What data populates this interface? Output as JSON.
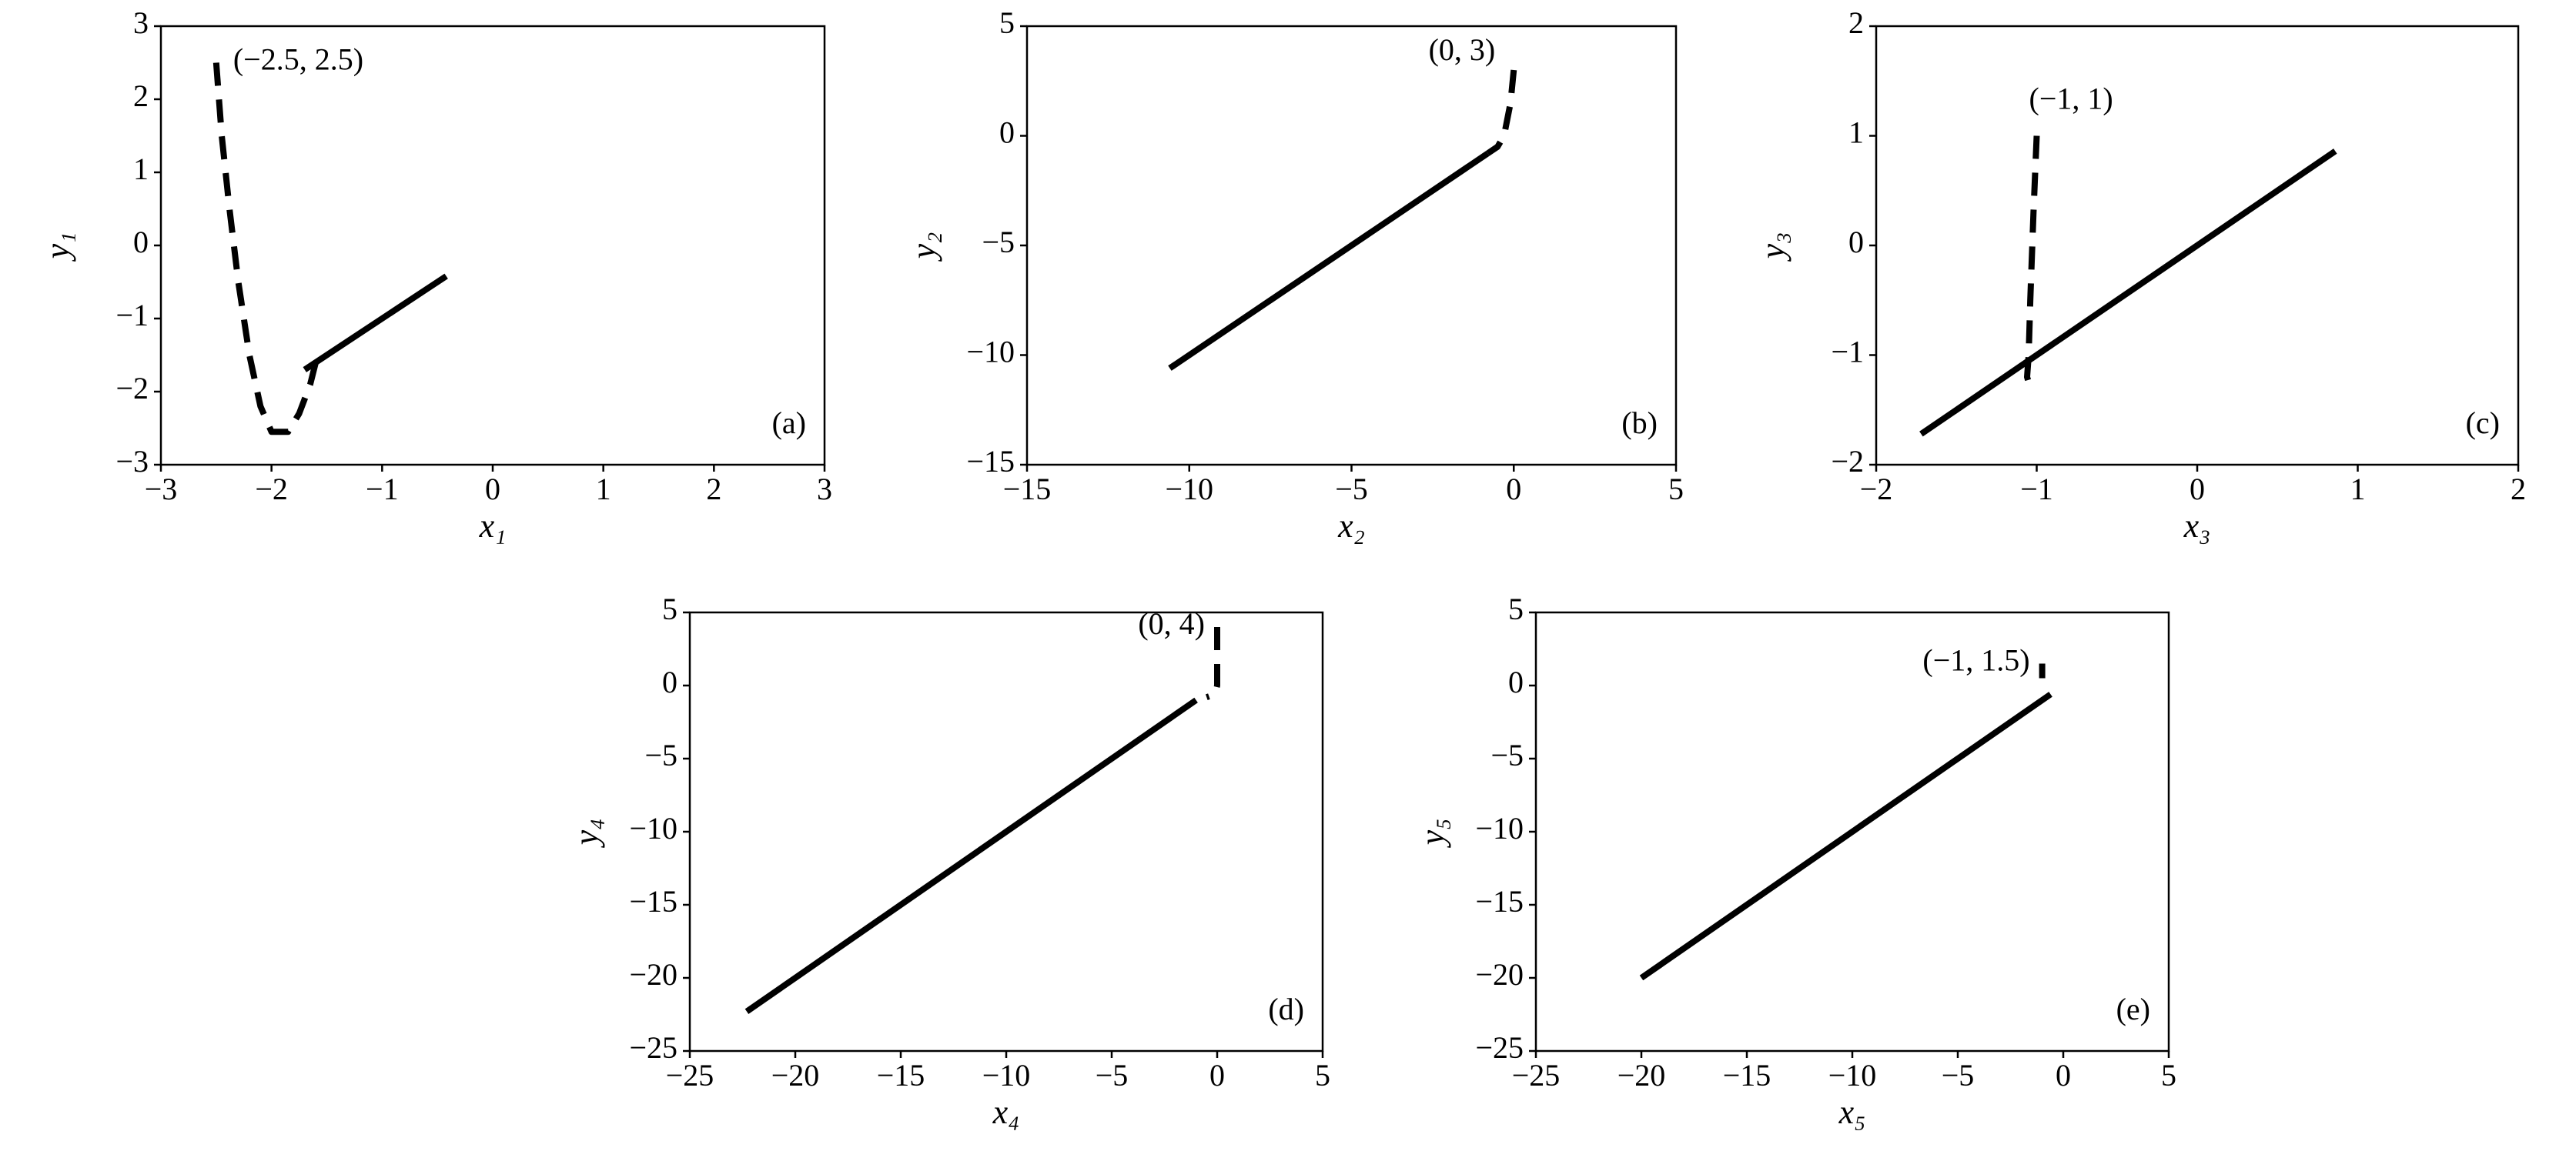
{
  "chart_data": [
    {
      "type": "line",
      "xlabel": "x₁",
      "ylabel": "y₁",
      "annotation": "(−2.5, 2.5)",
      "panel_label": "(a)",
      "xlim": [
        -3,
        3
      ],
      "ylim": [
        -3,
        3
      ],
      "xticks": [
        {
          "value": -3,
          "label": "−3"
        },
        {
          "value": -2,
          "label": "−2"
        },
        {
          "value": -1,
          "label": "−1"
        },
        0,
        1,
        2,
        3
      ],
      "yticks": [
        {
          "value": -3,
          "label": "−3"
        },
        {
          "value": -2,
          "label": "−2"
        },
        {
          "value": -1,
          "label": "−1"
        },
        0,
        1,
        2,
        3
      ],
      "series": [
        {
          "color": "#000000",
          "dashed": true,
          "x": [
            -2.5,
            -2.45,
            -2.38,
            -2.3,
            -2.2,
            -2.1,
            -2.0,
            -1.85,
            -1.75,
            -1.65,
            -1.6
          ],
          "values": [
            2.5,
            1.5,
            0.5,
            -0.5,
            -1.5,
            -2.2,
            -2.55,
            -2.55,
            -2.3,
            -1.9,
            -1.6
          ]
        },
        {
          "color": "#000000",
          "dashed": false,
          "x": [
            -1.7,
            -0.42
          ],
          "values": [
            -1.7,
            -0.42
          ]
        }
      ]
    },
    {
      "type": "line",
      "xlabel": "x₂",
      "ylabel": "y₂",
      "annotation": "(0, 3)",
      "panel_label": "(b)",
      "xlim": [
        -15,
        5
      ],
      "ylim": [
        -15,
        5
      ],
      "xticks": [
        {
          "value": -15,
          "label": "−15"
        },
        {
          "value": -10,
          "label": "−10"
        },
        {
          "value": -5,
          "label": "−5"
        },
        0,
        5
      ],
      "yticks": [
        {
          "value": -15,
          "label": "−15"
        },
        {
          "value": -10,
          "label": "−10"
        },
        {
          "value": -5,
          "label": "−5"
        },
        0,
        5
      ],
      "series": [
        {
          "color": "#000000",
          "dashed": true,
          "x": [
            0,
            -0.1,
            -0.3,
            -0.5,
            -0.8
          ],
          "values": [
            3,
            1.5,
            0,
            -0.5,
            -0.8
          ]
        },
        {
          "color": "#000000",
          "dashed": false,
          "x": [
            -0.8,
            -10.6
          ],
          "values": [
            -0.8,
            -10.6
          ]
        }
      ]
    },
    {
      "type": "line",
      "xlabel": "x₃",
      "ylabel": "y₃",
      "annotation": "(−1, 1)",
      "panel_label": "(c)",
      "xlim": [
        -2,
        2
      ],
      "ylim": [
        -2,
        2
      ],
      "xticks": [
        {
          "value": -2,
          "label": "−2"
        },
        {
          "value": -1,
          "label": "−1"
        },
        0,
        1,
        2
      ],
      "yticks": [
        {
          "value": -2,
          "label": "−2"
        },
        {
          "value": -1,
          "label": "−1"
        },
        0,
        1,
        2
      ],
      "series": [
        {
          "color": "#000000",
          "dashed": true,
          "x": [
            -1,
            -1.02,
            -1.04,
            -1.05,
            -1.06,
            -1.03
          ],
          "values": [
            1,
            0.3,
            -0.5,
            -1,
            -1.2,
            -1.35
          ]
        },
        {
          "color": "#000000",
          "dashed": false,
          "x": [
            -1.72,
            0.86
          ],
          "values": [
            -1.72,
            0.86
          ]
        }
      ]
    },
    {
      "type": "line",
      "xlabel": "x₄",
      "ylabel": "y₄",
      "annotation": "(0, 4)",
      "panel_label": "(d)",
      "xlim": [
        -25,
        5
      ],
      "ylim": [
        -25,
        5
      ],
      "xticks": [
        {
          "value": -25,
          "label": "−25"
        },
        {
          "value": -20,
          "label": "−20"
        },
        {
          "value": -15,
          "label": "−15"
        },
        {
          "value": -10,
          "label": "−10"
        },
        {
          "value": -5,
          "label": "−5"
        },
        0,
        5
      ],
      "yticks": [
        {
          "value": -25,
          "label": "−25"
        },
        {
          "value": -20,
          "label": "−20"
        },
        {
          "value": -15,
          "label": "−15"
        },
        {
          "value": -10,
          "label": "−10"
        },
        {
          "value": -5,
          "label": "−5"
        },
        0,
        5
      ],
      "series": [
        {
          "color": "#000000",
          "dashed": true,
          "x": [
            0,
            0,
            0,
            -0.1,
            -0.5
          ],
          "values": [
            4,
            2,
            0,
            -0.6,
            -0.8
          ]
        },
        {
          "color": "#000000",
          "dashed": false,
          "x": [
            -1,
            -22.3
          ],
          "values": [
            -1,
            -22.3
          ]
        }
      ]
    },
    {
      "type": "line",
      "xlabel": "x₅",
      "ylabel": "y₅",
      "annotation": "(−1, 1.5)",
      "panel_label": "(e)",
      "xlim": [
        -25,
        5
      ],
      "ylim": [
        -25,
        5
      ],
      "xticks": [
        {
          "value": -25,
          "label": "−25"
        },
        {
          "value": -20,
          "label": "−20"
        },
        {
          "value": -15,
          "label": "−15"
        },
        {
          "value": -10,
          "label": "−10"
        },
        {
          "value": -5,
          "label": "−5"
        },
        0,
        5
      ],
      "yticks": [
        {
          "value": -25,
          "label": "−25"
        },
        {
          "value": -20,
          "label": "−20"
        },
        {
          "value": -15,
          "label": "−15"
        },
        {
          "value": -10,
          "label": "−10"
        },
        {
          "value": -5,
          "label": "−5"
        },
        0,
        5
      ],
      "series": [
        {
          "color": "#000000",
          "dashed": true,
          "x": [
            -1,
            -1
          ],
          "values": [
            1.5,
            0.5
          ]
        },
        {
          "color": "#000000",
          "dashed": false,
          "x": [
            -0.6,
            -20
          ],
          "values": [
            -0.6,
            -20
          ]
        }
      ]
    }
  ]
}
